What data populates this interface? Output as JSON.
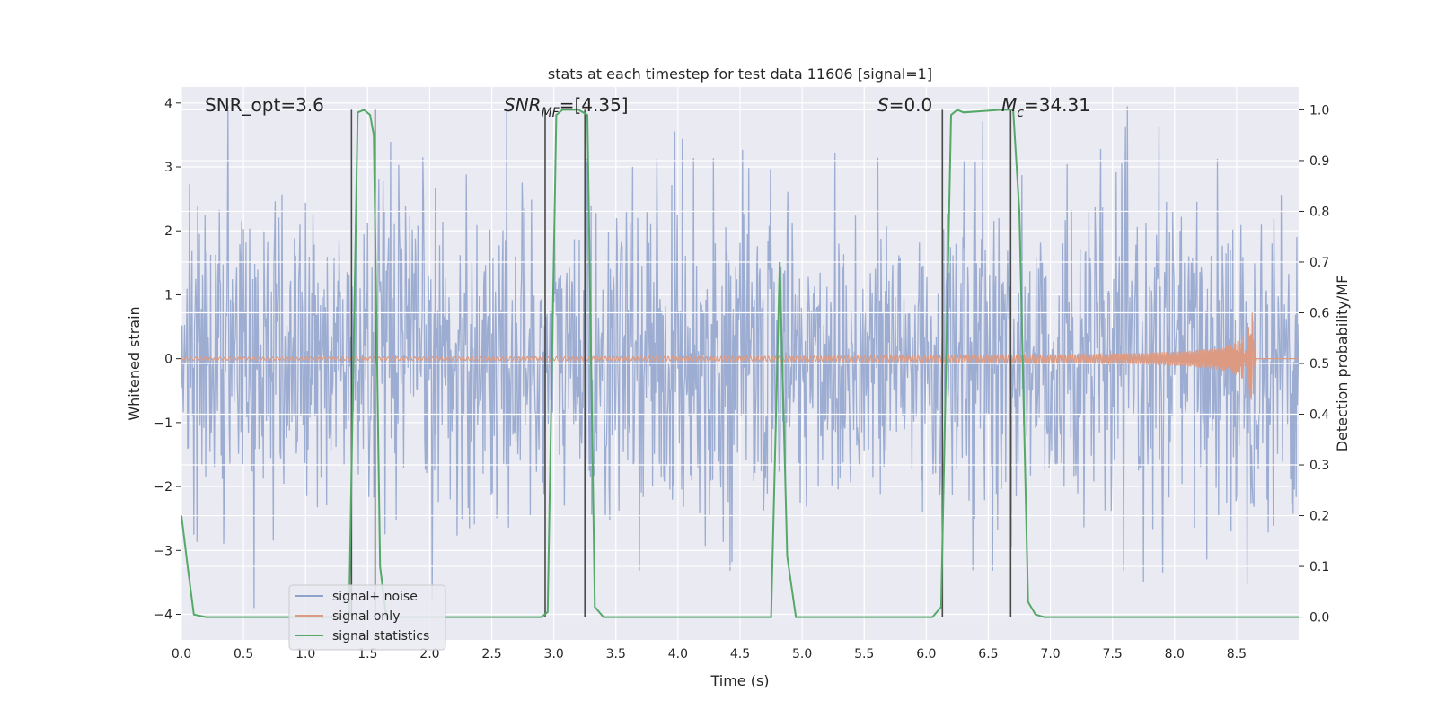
{
  "chart_data": {
    "type": "line",
    "title": "stats at each timestep for test data 11606 [signal=1]",
    "xlabel": "Time (s)",
    "ylabel": "Whitened strain",
    "y2label": "Detection probability/MF",
    "xlim": [
      0,
      9.0
    ],
    "ylim": [
      -4.4,
      4.25
    ],
    "y2lim": [
      -0.045,
      1.045
    ],
    "xticks": [
      "0.0",
      "0.5",
      "1.0",
      "1.5",
      "2.0",
      "2.5",
      "3.0",
      "3.5",
      "4.0",
      "4.5",
      "5.0",
      "5.5",
      "6.0",
      "6.5",
      "7.0",
      "7.5",
      "8.0",
      "8.5"
    ],
    "yticks": [
      "4",
      "3",
      "2",
      "1",
      "0",
      "−1",
      "−2",
      "−3",
      "−4"
    ],
    "y2ticks": [
      "1.0",
      "0.9",
      "0.8",
      "0.7",
      "0.6",
      "0.5",
      "0.4",
      "0.3",
      "0.2",
      "0.1",
      "0.0"
    ],
    "grid": true,
    "legend_position": "lower-left",
    "annotations": {
      "snr_opt": "SNR_opt=3.6",
      "snr_mf_prefix": "SNR",
      "snr_mf_sub": "MF",
      "snr_mf_value": "=[4.35]",
      "s_label": "S",
      "s_value": "=0.0",
      "mc_label": "M",
      "mc_sub": "c",
      "mc_value": "=34.31"
    },
    "series": [
      {
        "name": "signal+ noise",
        "color": "#8fa2cd",
        "noise_std": 1.0,
        "noise_extent": [
          -3.9,
          3.95
        ]
      },
      {
        "name": "signal only",
        "color": "#dd9a82",
        "chirp_peak_time": 8.63,
        "chirp_peak_amplitude": 0.9
      },
      {
        "name": "signal statistics",
        "color": "#55a868",
        "axis": "right",
        "x": [
          0.0,
          0.05,
          0.1,
          0.2,
          1.35,
          1.42,
          1.47,
          1.52,
          1.55,
          1.6,
          1.65,
          2.9,
          2.95,
          3.02,
          3.07,
          3.12,
          3.2,
          3.27,
          3.33,
          3.4,
          4.75,
          4.82,
          4.88,
          4.95,
          6.05,
          6.12,
          6.2,
          6.25,
          6.3,
          6.6,
          6.7,
          6.75,
          6.82,
          6.88,
          6.95,
          9.0
        ],
        "values": [
          0.2,
          0.1,
          0.005,
          0.0,
          0.0,
          0.995,
          1.0,
          0.99,
          0.95,
          0.1,
          0.0,
          0.0,
          0.01,
          0.99,
          1.0,
          1.0,
          1.0,
          0.99,
          0.02,
          0.0,
          0.0,
          0.7,
          0.12,
          0.0,
          0.0,
          0.02,
          0.99,
          1.0,
          0.995,
          1.0,
          1.0,
          0.8,
          0.03,
          0.005,
          0.0,
          0.0
        ]
      }
    ],
    "vlines": [
      1.37,
      1.56,
      2.93,
      3.25,
      6.13,
      6.68
    ]
  }
}
